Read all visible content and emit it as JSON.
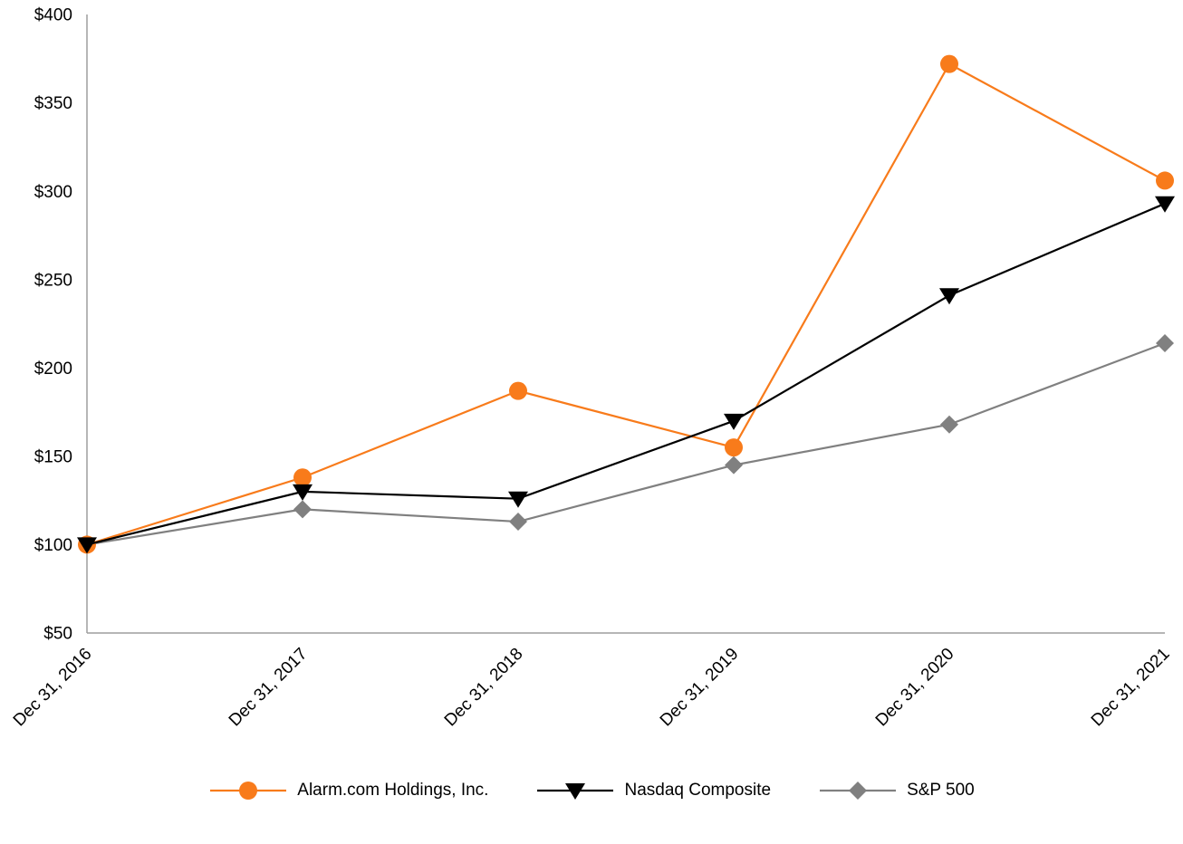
{
  "chart_data": {
    "type": "line",
    "title": "",
    "xlabel": "",
    "ylabel": "",
    "categories": [
      "Dec 31, 2016",
      "Dec 31, 2017",
      "Dec 31, 2018",
      "Dec 31, 2019",
      "Dec 31, 2020",
      "Dec 31, 2021"
    ],
    "series": [
      {
        "name": "Alarm.com Holdings, Inc.",
        "marker": "circle",
        "color": "#F87B1B",
        "values": [
          100,
          138,
          187,
          155,
          372,
          306
        ]
      },
      {
        "name": "Nasdaq Composite",
        "marker": "triangle-down",
        "color": "#000000",
        "values": [
          100,
          130,
          126,
          170,
          241,
          293
        ]
      },
      {
        "name": "S&P 500",
        "marker": "diamond",
        "color": "#808080",
        "values": [
          100,
          120,
          113,
          145,
          168,
          214
        ]
      }
    ],
    "ylim": [
      50,
      400
    ],
    "ytick_step": 50,
    "ytick_prefix": "$",
    "ytick_labels": [
      "$50",
      "$100",
      "$150",
      "$200",
      "$250",
      "$300",
      "$350",
      "$400"
    ],
    "grid": false,
    "legend_position": "bottom",
    "x_tick_rotation_deg": 45,
    "axis_color": "#9e9e9e"
  }
}
